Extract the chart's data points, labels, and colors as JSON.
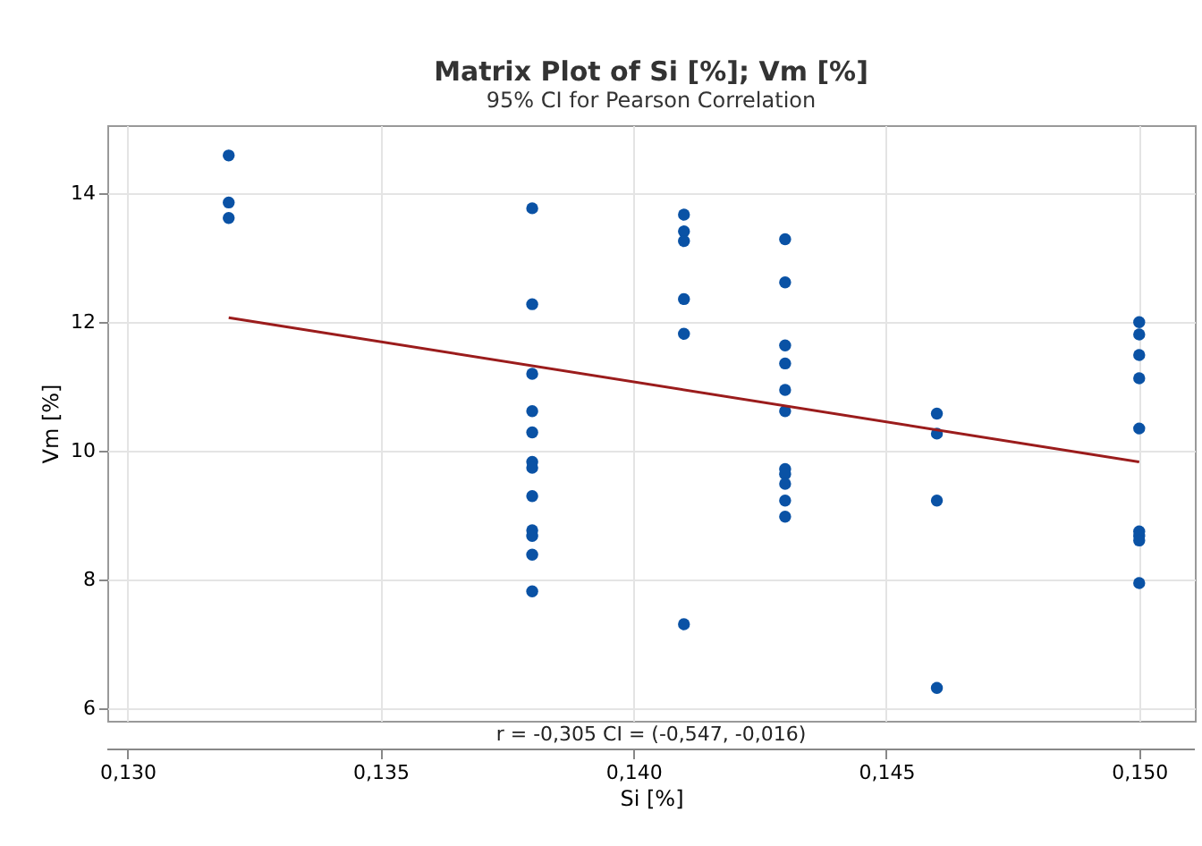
{
  "chart_data": {
    "type": "scatter",
    "title": "Matrix Plot of Si [%]; Vm [%]",
    "subtitle": "95% CI for Pearson Correlation",
    "xlabel": "Si [%]",
    "ylabel": "Vm [%]",
    "annotations": [
      "r = -0,305  CI = (-0,547, -0,016)"
    ],
    "series": [
      {
        "color": "#0a52a5",
        "marker": "circle",
        "x": [
          0.132,
          0.132,
          0.132,
          0.138,
          0.138,
          0.138,
          0.138,
          0.138,
          0.138,
          0.138,
          0.138,
          0.138,
          0.138,
          0.138,
          0.138,
          0.141,
          0.141,
          0.141,
          0.141,
          0.141,
          0.141,
          0.143,
          0.143,
          0.143,
          0.143,
          0.143,
          0.143,
          0.143,
          0.143,
          0.143,
          0.143,
          0.143,
          0.146,
          0.146,
          0.146,
          0.146,
          0.15,
          0.15,
          0.15,
          0.15,
          0.15,
          0.15,
          0.15,
          0.15,
          0.15
        ],
        "values": [
          14.58,
          13.85,
          13.61,
          13.76,
          12.27,
          11.19,
          10.61,
          10.28,
          9.82,
          9.73,
          9.29,
          8.76,
          8.67,
          8.38,
          7.81,
          13.66,
          13.4,
          13.25,
          12.35,
          11.81,
          7.3,
          13.28,
          12.61,
          11.63,
          11.35,
          10.94,
          10.61,
          9.71,
          9.63,
          9.48,
          9.22,
          8.97,
          10.57,
          10.26,
          9.22,
          6.31,
          11.99,
          11.8,
          11.48,
          11.12,
          10.34,
          8.74,
          8.67,
          8.6,
          7.94
        ]
      },
      {
        "type": "line",
        "color": "#9b1c1c",
        "x": [
          0.132,
          0.15
        ],
        "values": [
          12.06,
          9.82
        ]
      }
    ],
    "xlim": [
      0.1296,
      0.1511
    ],
    "xticks": [
      {
        "value": 0.13,
        "label": "0,130"
      },
      {
        "value": 0.135,
        "label": "0,135"
      },
      {
        "value": 0.14,
        "label": "0,140"
      },
      {
        "value": 0.145,
        "label": "0,145"
      },
      {
        "value": 0.15,
        "label": "0,150"
      }
    ],
    "ylim": [
      5.8,
      15.05
    ],
    "yticks": [
      6,
      8,
      10,
      12,
      14
    ],
    "grid": true
  }
}
